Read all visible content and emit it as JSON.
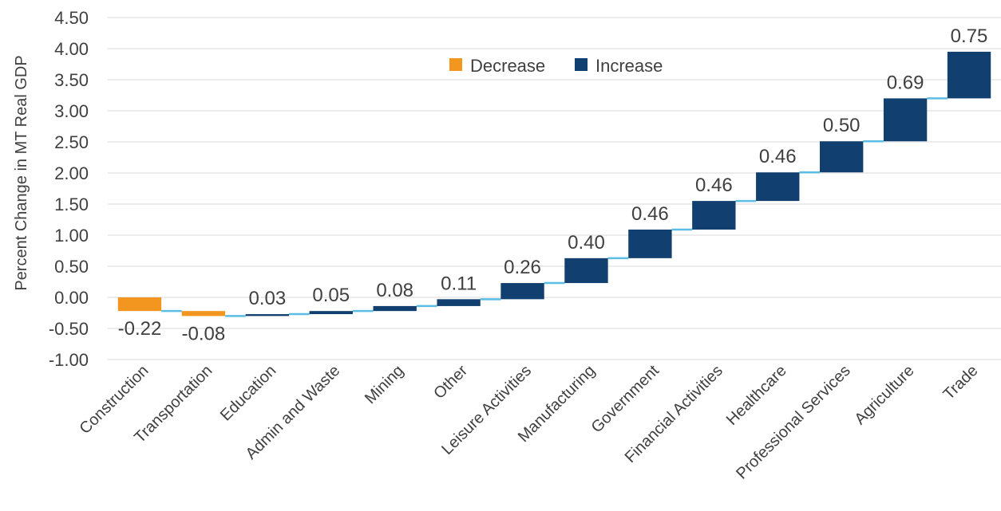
{
  "chart_data": {
    "type": "bar",
    "subtype": "waterfall",
    "title": "",
    "xlabel": "",
    "ylabel": "Percent Change in MT Real GDP",
    "ylim": [
      -1.0,
      4.5
    ],
    "yticks": [
      4.5,
      4.0,
      3.5,
      3.0,
      2.5,
      2.0,
      1.5,
      1.0,
      0.5,
      0.0,
      -0.5,
      -1.0
    ],
    "ytick_labels": [
      "4.50",
      "4.00",
      "3.50",
      "3.00",
      "2.50",
      "2.00",
      "1.50",
      "1.00",
      "0.50",
      "0.00",
      "-0.50",
      "-1.00"
    ],
    "grid": "horizontal",
    "legend_position": "top-center",
    "categories": [
      "Construction",
      "Transportation",
      "Education",
      "Admin and Waste",
      "Mining",
      "Other",
      "Leisure Activities",
      "Manufacturing",
      "Government",
      "Financial Activities",
      "Healthcare",
      "Professional Services",
      "Agriculture",
      "Trade"
    ],
    "values": [
      -0.22,
      -0.08,
      0.03,
      0.05,
      0.08,
      0.11,
      0.26,
      0.4,
      0.46,
      0.46,
      0.46,
      0.5,
      0.69,
      0.75
    ],
    "value_labels": [
      "-0.22",
      "-0.08",
      "0.03",
      "0.05",
      "0.08",
      "0.11",
      "0.26",
      "0.40",
      "0.46",
      "0.46",
      "0.46",
      "0.50",
      "0.69",
      "0.75"
    ],
    "series": [
      {
        "name": "Decrease",
        "color": "#F3961F"
      },
      {
        "name": "Increase",
        "color": "#113F6F"
      }
    ],
    "connector_color": "#5BBCE4",
    "gridline_color": "#D9D9D9"
  }
}
